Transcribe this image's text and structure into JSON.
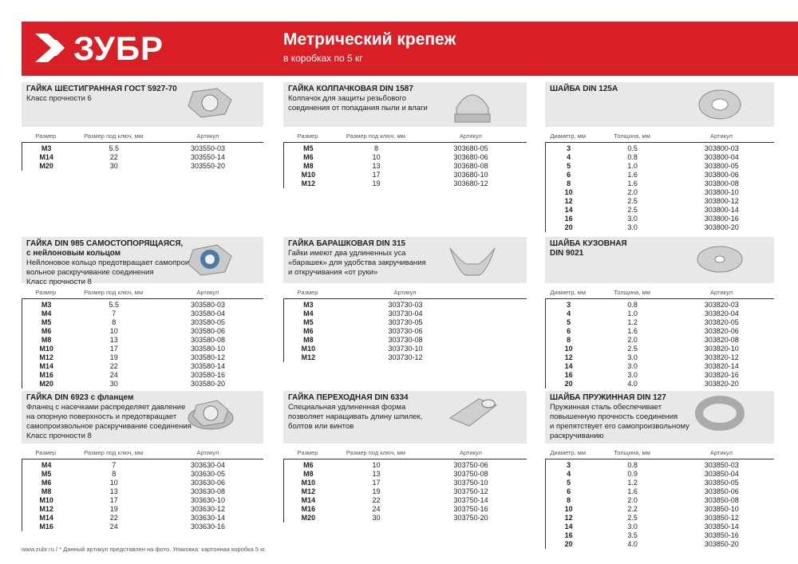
{
  "header": {
    "logo": "ЗУБР",
    "title": "Метрический крепеж",
    "subtitle": "в коробках по 5 кг"
  },
  "footer": {
    "site": "www.zubr.ru",
    "separator": "/",
    "note": "* Данный артикул представлен на фото. Упаковка: картонная коробка 5 кг."
  },
  "sections": [
    {
      "title": [
        "ГАЙКА ШЕСТИГРАННАЯ ГОСТ 5927-70"
      ],
      "description": [
        "Класс прочности 6"
      ],
      "columns": [
        "Размер",
        "Размер под ключ, мм",
        "Артикул"
      ],
      "rows": [
        [
          "M3",
          "5.5",
          "303550-03"
        ],
        [
          "M14",
          "22",
          "303550-14"
        ],
        [
          "M20",
          "30",
          "303550-20"
        ]
      ]
    },
    {
      "title": [
        "ГАЙКА КОЛПАЧКОВАЯ DIN 1587"
      ],
      "description": [
        "Колпачок для защиты резьбового",
        "соединения от попадания пыли и влаги"
      ],
      "columns": [
        "Размер",
        "Размер под ключ, мм",
        "Артикул"
      ],
      "rows": [
        [
          "M5",
          "8",
          "303680-05"
        ],
        [
          "M6",
          "10",
          "303680-06"
        ],
        [
          "M8",
          "13",
          "303680-08"
        ],
        [
          "M10",
          "17",
          "303680-10"
        ],
        [
          "M12",
          "19",
          "303680-12"
        ]
      ]
    },
    {
      "title": [
        "ШАЙБА DIN 125A"
      ],
      "description": [],
      "columns": [
        "Диаметр, мм",
        "Толщина, мм",
        "Артикул"
      ],
      "rows": [
        [
          "3",
          "0.5",
          "303800-03"
        ],
        [
          "4",
          "0.8",
          "303800-04"
        ],
        [
          "5",
          "1.0",
          "303800-05"
        ],
        [
          "6",
          "1.6",
          "303800-06"
        ],
        [
          "8",
          "1.6",
          "303800-08"
        ],
        [
          "10",
          "2.0",
          "303800-10"
        ],
        [
          "12",
          "2.5",
          "303800-12"
        ],
        [
          "14",
          "2.5",
          "303800-14"
        ],
        [
          "16",
          "3.0",
          "303800-16"
        ],
        [
          "20",
          "3.0",
          "303800-20"
        ]
      ]
    },
    {
      "title": [
        "ГАЙКА DIN 985 САМОСТОПОРЯЩАЯСЯ,",
        "с нейлоновым кольцом"
      ],
      "description": [
        "Нейлоновое кольцо предотвращает самопроиз-",
        "вольное раскручивание соединения",
        "Класс прочности 8"
      ],
      "columns": [
        "Размер",
        "Размер под ключ, мм",
        "Артикул"
      ],
      "rows": [
        [
          "M3",
          "5.5",
          "303580-03"
        ],
        [
          "M4",
          "7",
          "303580-04"
        ],
        [
          "M5",
          "8",
          "303580-05"
        ],
        [
          "M6",
          "10",
          "303580-06"
        ],
        [
          "M8",
          "13",
          "303580-08"
        ],
        [
          "M10",
          "17",
          "303580-10"
        ],
        [
          "M12",
          "19",
          "303580-12"
        ],
        [
          "M14",
          "22",
          "303580-14"
        ],
        [
          "M16",
          "24",
          "303580-16"
        ],
        [
          "M20",
          "30",
          "303580-20"
        ]
      ]
    },
    {
      "title": [
        "ГАЙКА БАРАШКОВАЯ DIN 315"
      ],
      "description": [
        "Гайки имеют два удлиненных уса",
        "«барашек» для удобства закручивания",
        "и откручивания «от руки»"
      ],
      "columns": [
        "Размер",
        "Артикул"
      ],
      "rows": [
        [
          "M3",
          "303730-03"
        ],
        [
          "M4",
          "303730-04"
        ],
        [
          "M5",
          "303730-05"
        ],
        [
          "M6",
          "303730-06"
        ],
        [
          "M8",
          "303730-08"
        ],
        [
          "M10",
          "303730-10"
        ],
        [
          "M12",
          "303730-12"
        ]
      ]
    },
    {
      "title": [
        "ШАЙБА КУЗОВНАЯ",
        "DIN 9021"
      ],
      "description": [],
      "columns": [
        "Диаметр, мм",
        "Толщина, мм",
        "Артикул"
      ],
      "rows": [
        [
          "3",
          "0.8",
          "303820-03"
        ],
        [
          "4",
          "1.0",
          "303820-04"
        ],
        [
          "5",
          "1.2",
          "303820-05"
        ],
        [
          "6",
          "1.6",
          "303820-06"
        ],
        [
          "8",
          "2.0",
          "303820-08"
        ],
        [
          "10",
          "2.5",
          "303820-10"
        ],
        [
          "12",
          "3.0",
          "303820-12"
        ],
        [
          "14",
          "3.0",
          "303820-14"
        ],
        [
          "16",
          "3.0",
          "303820-16"
        ],
        [
          "20",
          "4.0",
          "303820-20"
        ]
      ]
    },
    {
      "title": [
        "ГАЙКА DIN 6923 с фланцем"
      ],
      "description": [
        "Фланец с насечками распределяет давление",
        "на опорную поверхность и предотвращает",
        "самопроизвольное раскручивание соединения",
        "Класс прочности 8"
      ],
      "columns": [
        "Размер",
        "Размер под ключ, мм",
        "Артикул"
      ],
      "rows": [
        [
          "M4",
          "7",
          "303630-04"
        ],
        [
          "M5",
          "8",
          "303630-05"
        ],
        [
          "M6",
          "10",
          "303630-06"
        ],
        [
          "M8",
          "13",
          "303630-08"
        ],
        [
          "M10",
          "17",
          "303630-10"
        ],
        [
          "M12",
          "19",
          "303630-12"
        ],
        [
          "M14",
          "22",
          "303630-14"
        ],
        [
          "M16",
          "24",
          "303630-16"
        ]
      ]
    },
    {
      "title": [
        "ГАЙКА ПЕРЕХОДНАЯ DIN 6334"
      ],
      "description": [
        "Специальная удлиненная форма",
        "позволяет наращивать длину шпилек,",
        "болтов или винтов"
      ],
      "columns": [
        "Размер",
        "Размер под ключ, мм",
        "Артикул"
      ],
      "rows": [
        [
          "M6",
          "10",
          "303750-06"
        ],
        [
          "M8",
          "13",
          "303750-08"
        ],
        [
          "M10",
          "17",
          "303750-10"
        ],
        [
          "M12",
          "19",
          "303750-12"
        ],
        [
          "M14",
          "22",
          "303750-14"
        ],
        [
          "M16",
          "24",
          "303750-16"
        ],
        [
          "M20",
          "30",
          "303750-20"
        ]
      ]
    },
    {
      "title": [
        "ШАЙБА ПРУЖИННАЯ DIN 127"
      ],
      "description": [
        "Пружинная сталь обеспечивает",
        "повышенную прочность соединения",
        "и препятствует его самопроизвольному",
        "раскручиванию"
      ],
      "columns": [
        "Диаметр, мм",
        "Толщина, мм",
        "Артикул"
      ],
      "rows": [
        [
          "3",
          "0.8",
          "303850-03"
        ],
        [
          "4",
          "0.9",
          "303850-04"
        ],
        [
          "5",
          "1.2",
          "303850-05"
        ],
        [
          "6",
          "1.6",
          "303850-06"
        ],
        [
          "8",
          "2.0",
          "303850-08"
        ],
        [
          "10",
          "2.2",
          "303850-10"
        ],
        [
          "12",
          "2.5",
          "303850-12"
        ],
        [
          "14",
          "3.0",
          "303850-14"
        ],
        [
          "16",
          "3.5",
          "303850-16"
        ],
        [
          "20",
          "4.0",
          "303850-20"
        ]
      ]
    }
  ]
}
